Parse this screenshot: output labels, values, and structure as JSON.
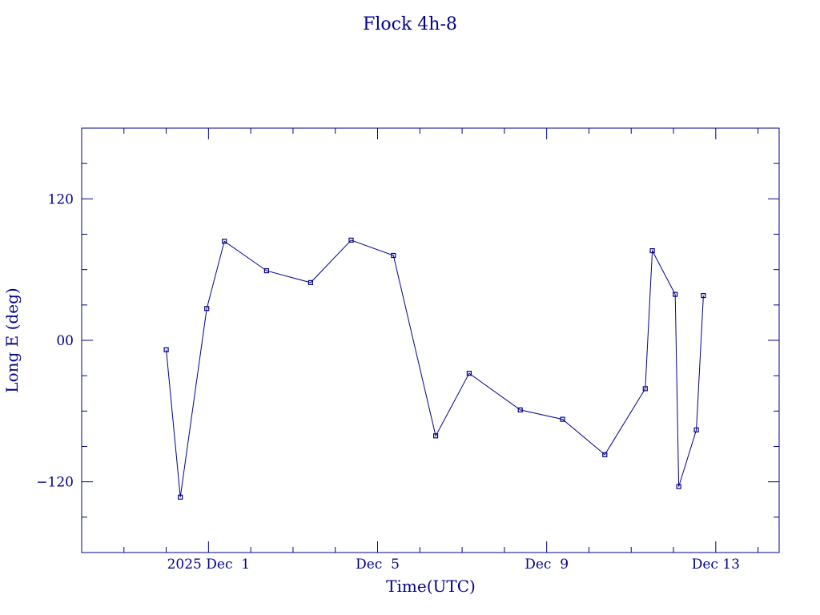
{
  "chart_data": {
    "type": "line",
    "title": "Flock 4h-8",
    "xlabel": "Time(UTC)",
    "ylabel": "Long E (deg)",
    "x_tick_labels": [
      "2025 Dec  1",
      "Dec  5",
      "Dec  9",
      "Dec 13"
    ],
    "y_tick_labels": [
      "120",
      "00",
      "-120"
    ],
    "y_ticks": [
      120,
      0,
      -120
    ],
    "y_minor_ticks": [
      150,
      90,
      60,
      30,
      -30,
      -60,
      -90,
      -150
    ],
    "x_ticks": [
      "2025-12-01",
      "2025-12-05",
      "2025-12-09",
      "2025-12-13"
    ],
    "x_minor_ticks": [
      "2025-11-29",
      "2025-11-30",
      "2025-12-02",
      "2025-12-03",
      "2025-12-04",
      "2025-12-06",
      "2025-12-07",
      "2025-12-08",
      "2025-12-10",
      "2025-12-11",
      "2025-12-12",
      "2025-12-14"
    ],
    "xlim": [
      "2025-11-28T00:00",
      "2025-12-14T12:00"
    ],
    "ylim": [
      -180,
      180
    ],
    "grid": false,
    "color": "#00008b",
    "marker": "square",
    "series": [
      {
        "x": [
          "2025-11-30T00:00",
          "2025-11-30T08:00",
          "2025-11-30T23:00",
          "2025-12-01T09:00",
          "2025-12-02T09:00",
          "2025-12-03T10:00",
          "2025-12-04T09:00",
          "2025-12-05T09:00",
          "2025-12-06T09:00",
          "2025-12-07T04:00",
          "2025-12-08T09:00",
          "2025-12-09T09:00",
          "2025-12-10T09:00",
          "2025-12-11T08:00",
          "2025-12-11T12:00",
          "2025-12-12T01:00",
          "2025-12-12T03:00",
          "2025-12-12T13:00",
          "2025-12-12T17:00"
        ],
        "y": [
          -8,
          -133,
          27,
          84,
          59,
          49,
          85,
          72,
          -81,
          -28,
          -59,
          -67,
          -97,
          -41,
          76,
          39,
          -124,
          -76,
          38
        ]
      }
    ]
  }
}
